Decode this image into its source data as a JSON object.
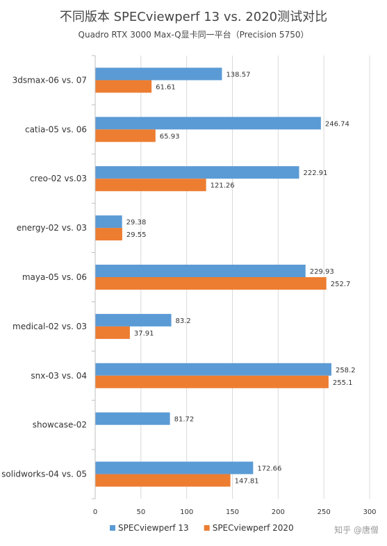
{
  "chart_data": {
    "type": "bar",
    "orientation": "horizontal",
    "title": "不同版本 SPECviewperf 13 vs. 2020测试对比",
    "subtitle": "Quadro RTX 3000 Max-Q显卡同一平台（Precision 5750）",
    "categories": [
      "3dsmax-06 vs. 07",
      "catia-05 vs. 06",
      "creo-02 vs.03",
      "energy-02 vs. 03",
      "maya-05 vs. 06",
      "medical-02 vs. 03",
      "snx-03 vs. 04",
      "showcase-02",
      "solidworks-04 vs. 05"
    ],
    "series": [
      {
        "name": "SPECviewperf 13",
        "color": "#5b9bd5",
        "values": [
          138.57,
          246.74,
          222.91,
          29.38,
          229.93,
          83.2,
          258.2,
          81.72,
          172.66
        ],
        "labels": [
          "138.57",
          "246.74",
          "222.91",
          "29.38",
          "229.93",
          "83.2",
          "258.2",
          "81.72",
          "172.66"
        ]
      },
      {
        "name": "SPECviewperf 2020",
        "color": "#ed7d31",
        "values": [
          61.61,
          65.93,
          121.26,
          29.55,
          252.7,
          37.91,
          255.1,
          null,
          147.81
        ],
        "labels": [
          "61.61",
          "65.93",
          "121.26",
          "29.55",
          "252.7",
          "37.91",
          "255.1",
          "",
          "147.81"
        ]
      }
    ],
    "xlim": [
      0,
      300
    ],
    "ticks": [
      0,
      50,
      100,
      150,
      200,
      250,
      300
    ],
    "tick_labels": [
      "0",
      "50",
      "100",
      "150",
      "200",
      "250",
      "300"
    ],
    "grid": "vertical",
    "legend": "bottom"
  },
  "watermark": "知乎 @唐僧"
}
